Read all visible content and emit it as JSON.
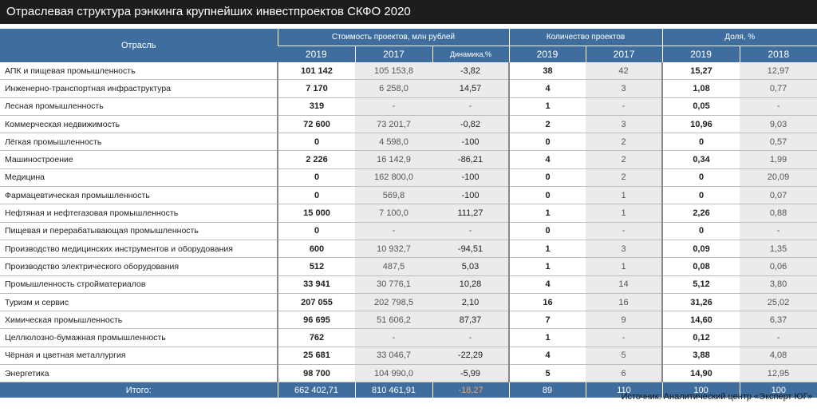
{
  "title": "Отраслевая структура рэнкинга крупнейших инвестпроектов СКФО 2020",
  "header": {
    "sector": "Отрасль",
    "cost_group": "Стоимость проектов, млн рублей",
    "count_group": "Количество проектов",
    "share_group": "Доля, %",
    "sub": [
      "2019",
      "2017",
      "Динамика,%",
      "2019",
      "2017",
      "2019",
      "2018"
    ]
  },
  "rows": [
    {
      "name": "АПК и пищевая промышленность",
      "c2019": "101 142",
      "c2017": "105 153,8",
      "dyn": "-3,82",
      "dyn_sign": "neg",
      "n2019": "38",
      "n2017": "42",
      "s2019": "15,27",
      "s2018": "12,97"
    },
    {
      "name": "Инженерно-транспортная инфраструктура",
      "c2019": "7 170",
      "c2017": "6 258,0",
      "dyn": "14,57",
      "dyn_sign": "pos",
      "n2019": "4",
      "n2017": "3",
      "s2019": "1,08",
      "s2018": "0,77"
    },
    {
      "name": "Лесная промышленность",
      "c2019": "319",
      "c2017": "-",
      "dyn": "-",
      "dyn_sign": "none",
      "n2019": "1",
      "n2017": "-",
      "s2019": "0,05",
      "s2018": "-"
    },
    {
      "name": "Коммерческая недвижимость",
      "c2019": "72 600",
      "c2017": "73 201,7",
      "dyn": "-0,82",
      "dyn_sign": "neg",
      "n2019": "2",
      "n2017": "3",
      "s2019": "10,96",
      "s2018": "9,03"
    },
    {
      "name": "Лёгкая промышленность",
      "c2019": "0",
      "c2017": "4 598,0",
      "dyn": "-100",
      "dyn_sign": "neg",
      "n2019": "0",
      "n2017": "2",
      "s2019": "0",
      "s2018": "0,57"
    },
    {
      "name": "Машиностроение",
      "c2019": "2 226",
      "c2017": "16 142,9",
      "dyn": "-86,21",
      "dyn_sign": "neg",
      "n2019": "4",
      "n2017": "2",
      "s2019": "0,34",
      "s2018": "1,99"
    },
    {
      "name": "Медицина",
      "c2019": "0",
      "c2017": "162 800,0",
      "dyn": "-100",
      "dyn_sign": "neg",
      "n2019": "0",
      "n2017": "2",
      "s2019": "0",
      "s2018": "20,09"
    },
    {
      "name": "Фармацевтическая промышленность",
      "c2019": "0",
      "c2017": "569,8",
      "dyn": "-100",
      "dyn_sign": "neg",
      "n2019": "0",
      "n2017": "1",
      "s2019": "0",
      "s2018": "0,07"
    },
    {
      "name": "Нефтяная и нефтегазовая промышленность",
      "c2019": "15 000",
      "c2017": "7 100,0",
      "dyn": "111,27",
      "dyn_sign": "pos",
      "n2019": "1",
      "n2017": "1",
      "s2019": "2,26",
      "s2018": "0,88"
    },
    {
      "name": "Пищевая и перерабатывающая промышленность",
      "c2019": "0",
      "c2017": "-",
      "dyn": "-",
      "dyn_sign": "none",
      "n2019": "0",
      "n2017": "-",
      "s2019": "0",
      "s2018": "-"
    },
    {
      "name": "Производство медицинских инструментов и оборудования",
      "c2019": "600",
      "c2017": "10 932,7",
      "dyn": "-94,51",
      "dyn_sign": "neg",
      "n2019": "1",
      "n2017": "3",
      "s2019": "0,09",
      "s2018": "1,35"
    },
    {
      "name": "Производство электрического оборудования",
      "c2019": "512",
      "c2017": "487,5",
      "dyn": "5,03",
      "dyn_sign": "pos",
      "n2019": "1",
      "n2017": "1",
      "s2019": "0,08",
      "s2018": "0,06"
    },
    {
      "name": "Промышленность стройматериалов",
      "c2019": "33 941",
      "c2017": "30 776,1",
      "dyn": "10,28",
      "dyn_sign": "pos",
      "n2019": "4",
      "n2017": "14",
      "s2019": "5,12",
      "s2018": "3,80"
    },
    {
      "name": "Туризм и сервис",
      "c2019": "207 055",
      "c2017": "202 798,5",
      "dyn": "2,10",
      "dyn_sign": "pos",
      "n2019": "16",
      "n2017": "16",
      "s2019": "31,26",
      "s2018": "25,02"
    },
    {
      "name": "Химическая промышленность",
      "c2019": "96 695",
      "c2017": "51 606,2",
      "dyn": "87,37",
      "dyn_sign": "pos",
      "n2019": "7",
      "n2017": "9",
      "s2019": "14,60",
      "s2018": "6,37"
    },
    {
      "name": "Целлюлозно-бумажная промышленность",
      "c2019": "762",
      "c2017": "-",
      "dyn": "-",
      "dyn_sign": "none",
      "n2019": "1",
      "n2017": "-",
      "s2019": "0,12",
      "s2018": "-"
    },
    {
      "name": "Чёрная и цветная металлургия",
      "c2019": "25 681",
      "c2017": "33 046,7",
      "dyn": "-22,29",
      "dyn_sign": "neg",
      "n2019": "4",
      "n2017": "5",
      "s2019": "3,88",
      "s2018": "4,08"
    },
    {
      "name": "Энергетика",
      "c2019": "98 700",
      "c2017": "104 990,0",
      "dyn": "-5,99",
      "dyn_sign": "neg",
      "n2019": "5",
      "n2017": "6",
      "s2019": "14,90",
      "s2018": "12,95"
    }
  ],
  "total": {
    "label": "Итого:",
    "c2019": "662 402,71",
    "c2017": "810 461,91",
    "dyn": "-18,27",
    "n2019": "89",
    "n2017": "110",
    "s2019": "100",
    "s2018": "100"
  },
  "source": "Источник: Аналитический центр «Эксперт ЮГ»",
  "colors": {
    "header_bg": "#3f6e9e",
    "title_bg": "#1d1d1b",
    "negative": "#e8261d",
    "positive": "#3aa935"
  }
}
